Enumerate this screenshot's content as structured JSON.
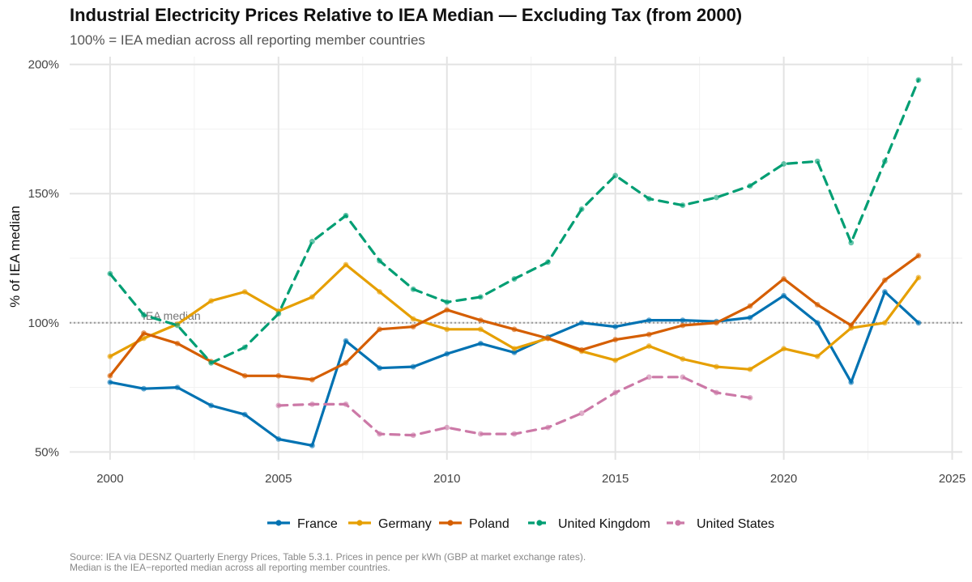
{
  "chart_data": {
    "type": "line",
    "title": "Industrial Electricity Prices Relative to IEA Median — Excluding Tax (from 2000)",
    "subtitle": "100% = IEA median across all reporting member countries",
    "xlabel": "",
    "ylabel": "% of IEA median",
    "xlim": [
      1998.8,
      2025.3
    ],
    "ylim": [
      47,
      203
    ],
    "x_ticks": [
      2000,
      2005,
      2010,
      2015,
      2020,
      2025
    ],
    "y_ticks": [
      50,
      100,
      150,
      200
    ],
    "y_tick_labels": [
      "50%",
      "100%",
      "150%",
      "200%"
    ],
    "reference_line": {
      "y": 100,
      "label": "IEA median"
    },
    "legend_position": "bottom",
    "series": [
      {
        "name": "France",
        "color": "#0072B2",
        "dash": "solid",
        "x": [
          2000,
          2001,
          2002,
          2003,
          2004,
          2005,
          2006,
          2007,
          2008,
          2009,
          2010,
          2011,
          2012,
          2013,
          2014,
          2015,
          2016,
          2017,
          2018,
          2019,
          2020,
          2021,
          2022,
          2023,
          2024
        ],
        "values": [
          77,
          74.5,
          75,
          68,
          64.5,
          55,
          52.5,
          93,
          82.5,
          83,
          88,
          92,
          88.5,
          94.5,
          100,
          98.5,
          101,
          101,
          100.5,
          102,
          110.5,
          100,
          77,
          112,
          100
        ]
      },
      {
        "name": "Germany",
        "color": "#E69F00",
        "dash": "solid",
        "x": [
          2000,
          2001,
          2002,
          2003,
          2004,
          2005,
          2006,
          2007,
          2008,
          2009,
          2010,
          2011,
          2012,
          2013,
          2014,
          2015,
          2016,
          2017,
          2018,
          2019,
          2020,
          2021,
          2022,
          2023,
          2024
        ],
        "values": [
          87,
          94,
          99.5,
          108.5,
          112,
          104.5,
          110,
          122.5,
          112,
          101.5,
          97.5,
          97.5,
          90,
          94,
          89,
          85.5,
          91,
          86,
          83,
          82,
          90,
          87,
          98,
          100,
          117.5
        ]
      },
      {
        "name": "Poland",
        "color": "#D55E00",
        "dash": "solid",
        "x": [
          2000,
          2001,
          2002,
          2003,
          2004,
          2005,
          2006,
          2007,
          2008,
          2009,
          2010,
          2011,
          2012,
          2013,
          2014,
          2015,
          2016,
          2017,
          2018,
          2019,
          2020,
          2021,
          2022,
          2023,
          2024
        ],
        "values": [
          79.5,
          96,
          92,
          85,
          79.5,
          79.5,
          78,
          84.5,
          97.5,
          98.5,
          105,
          101,
          97.5,
          94,
          89.5,
          93.5,
          95.5,
          99,
          100,
          106.5,
          117,
          107,
          99,
          116.5,
          126
        ]
      },
      {
        "name": "United Kingdom",
        "color": "#009E73",
        "dash": "dashed",
        "x": [
          2000,
          2001,
          2002,
          2003,
          2004,
          2005,
          2006,
          2007,
          2008,
          2009,
          2010,
          2011,
          2012,
          2013,
          2014,
          2015,
          2016,
          2017,
          2018,
          2019,
          2020,
          2021,
          2022,
          2023,
          2024
        ],
        "values": [
          119,
          103,
          99,
          84.5,
          90.5,
          103.5,
          131.5,
          141.5,
          124,
          113,
          108,
          110,
          117,
          123.5,
          144,
          157,
          148,
          145.5,
          148.5,
          153,
          161.5,
          162.5,
          131,
          162.5,
          194
        ]
      },
      {
        "name": "United States",
        "color": "#CC79A7",
        "dash": "dashed",
        "x": [
          2005,
          2006,
          2007,
          2008,
          2009,
          2010,
          2011,
          2012,
          2013,
          2014,
          2015,
          2016,
          2017,
          2018,
          2019
        ],
        "values": [
          68,
          68.5,
          68.5,
          57,
          56.5,
          59.5,
          57,
          57,
          59.5,
          65,
          73,
          79,
          79,
          73,
          71
        ]
      }
    ]
  },
  "caption_lines": [
    "Source: IEA via DESNZ Quarterly Energy Prices, Table 5.3.1. Prices in pence per kWh (GBP at market exchange rates).",
    "Median is the IEA−reported median across all reporting member countries."
  ]
}
